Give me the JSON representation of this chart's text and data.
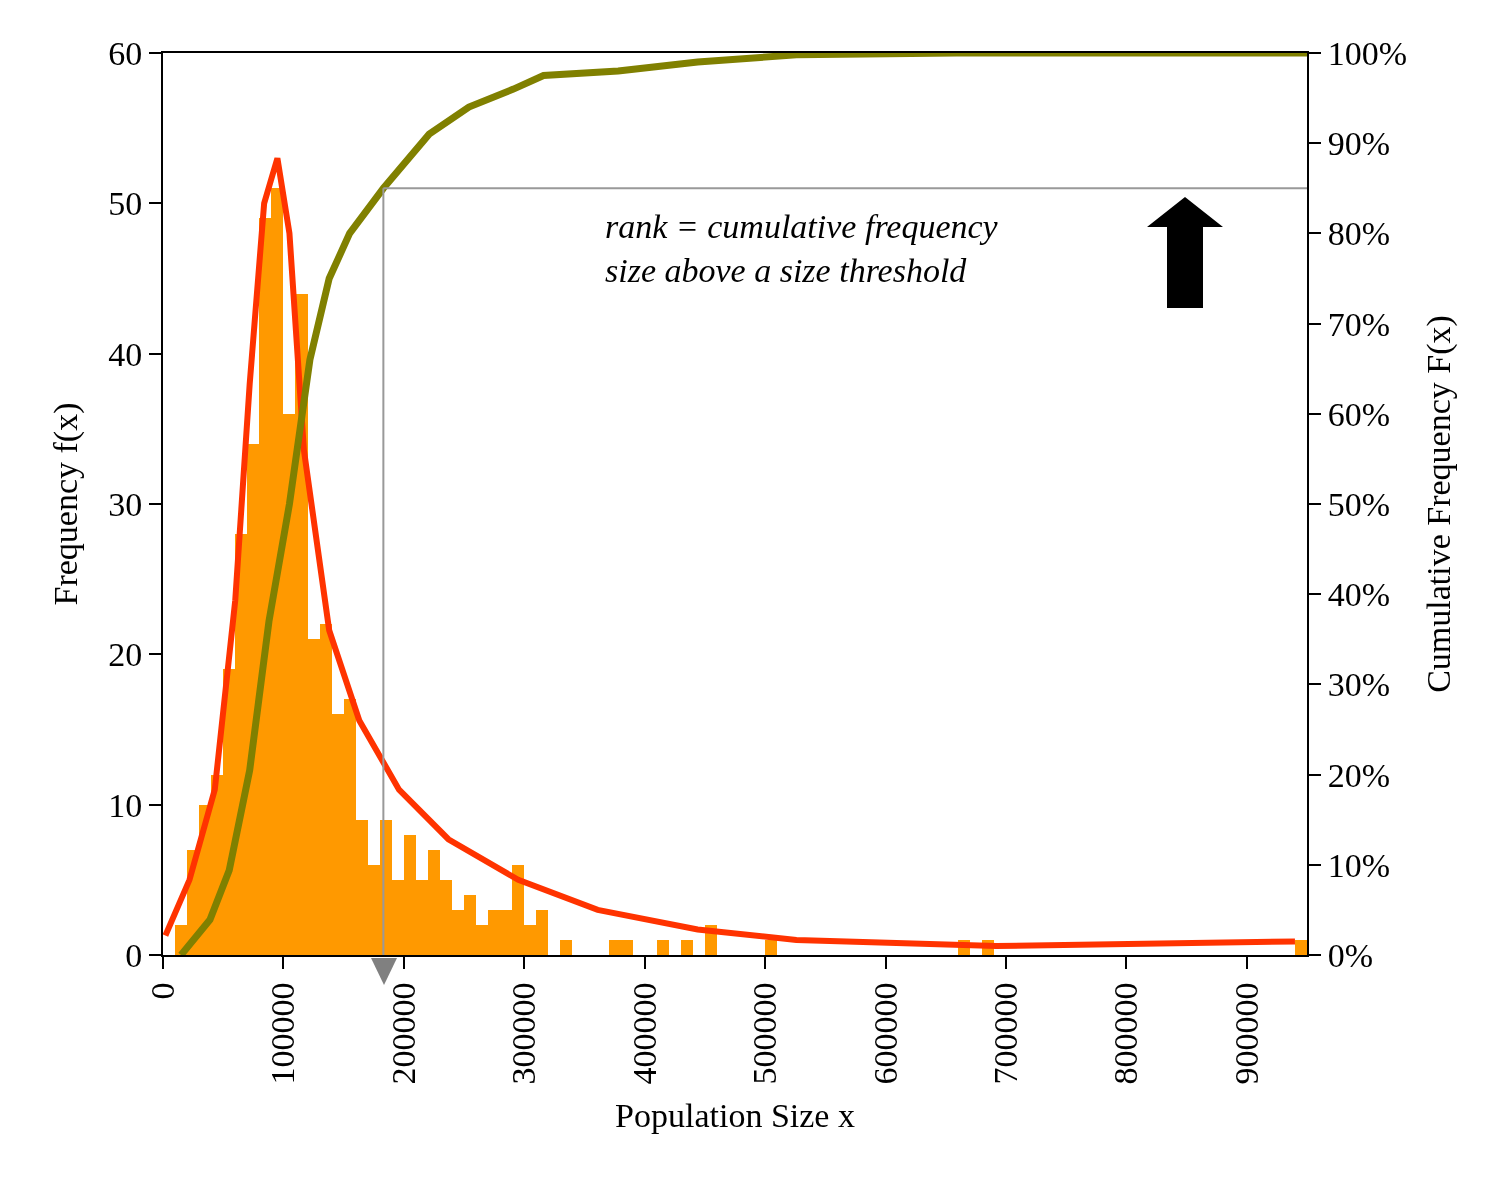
{
  "chart_data": {
    "type": "histogram",
    "xlabel": "Population Size x",
    "ylabel": "Frequency f(x)",
    "y2label": "Cumulative Frequency F(x)",
    "bins": [
      0,
      10000,
      20000,
      30000,
      40000,
      50000,
      60000,
      70000,
      80000,
      90000,
      100000,
      110000,
      120000,
      130000,
      140000,
      150000,
      160000,
      170000,
      180000,
      190000,
      200000,
      210000,
      220000,
      230000,
      240000,
      250000,
      260000,
      270000,
      280000,
      290000,
      300000,
      310000,
      320000,
      330000,
      340000,
      350000,
      360000,
      370000,
      380000,
      390000,
      400000,
      410000,
      420000,
      430000,
      440000,
      450000,
      460000,
      470000,
      480000,
      490000,
      500000,
      510000,
      520000,
      530000,
      540000,
      550000,
      560000,
      570000,
      580000,
      590000,
      600000,
      610000,
      620000,
      630000,
      640000,
      650000,
      660000,
      670000,
      680000,
      690000,
      700000,
      710000,
      720000,
      730000,
      740000,
      750000,
      760000,
      770000,
      780000,
      790000,
      800000,
      810000,
      820000,
      830000,
      840000,
      850000,
      860000,
      870000,
      880000,
      890000,
      900000,
      910000,
      920000,
      930000,
      940000,
      950000
    ],
    "series": [
      {
        "type": "histogram",
        "color": "#ff9900",
        "values": [
          0,
          2,
          7,
          10,
          12,
          19,
          28,
          34,
          49,
          51,
          36,
          44,
          21,
          22,
          16,
          17,
          9,
          6,
          9,
          5,
          8,
          5,
          7,
          5,
          3,
          4,
          2,
          3,
          3,
          6,
          2,
          3,
          0,
          1,
          0,
          0,
          0,
          1,
          1,
          0,
          0,
          1,
          0,
          1,
          0,
          2,
          0,
          0,
          0,
          0,
          1,
          0,
          0,
          0,
          0,
          0,
          0,
          0,
          0,
          0,
          0,
          0,
          0,
          0,
          0,
          0,
          1,
          0,
          1,
          0,
          0,
          0,
          0,
          0,
          0,
          0,
          0,
          0,
          0,
          0,
          0,
          0,
          0,
          0,
          0,
          0,
          0,
          0,
          0,
          0,
          0,
          0,
          0,
          0,
          1
        ]
      },
      {
        "type": "line",
        "color": "#808000",
        "axis": "y2",
        "x": [
          15000,
          39000,
          55000,
          72000,
          88000,
          105000,
          122000,
          138000,
          155000,
          183000,
          221000,
          254000,
          291000,
          316000,
          378000,
          444000,
          526000,
          659000,
          950000
        ],
        "values": [
          0,
          3.9,
          9.4,
          20.5,
          37,
          50,
          66,
          75,
          80,
          85,
          91,
          94,
          96,
          97.5,
          98,
          99,
          99.8,
          100,
          100
        ]
      },
      {
        "type": "line",
        "color": "#ff3300",
        "x": [
          2000,
          22000,
          43000,
          60000,
          72000,
          84000,
          95000,
          105000,
          117000,
          138000,
          163000,
          196000,
          237000,
          295000,
          361000,
          444000,
          526000,
          692000,
          940000
        ],
        "values": [
          1.3,
          5,
          11,
          23.6,
          38,
          50,
          53,
          48,
          33.6,
          21.6,
          15.6,
          11,
          7.7,
          5,
          3,
          1.7,
          1,
          0.6,
          0.9
        ]
      }
    ],
    "xlim": [
      0,
      950000
    ],
    "xticks": [
      0,
      100000,
      200000,
      300000,
      400000,
      500000,
      600000,
      700000,
      800000,
      900000
    ],
    "ylim": [
      0,
      60
    ],
    "yticks": [
      0,
      10,
      20,
      30,
      40,
      50,
      60
    ],
    "y2lim": [
      0,
      100
    ],
    "y2ticks": [
      {
        "value": 0,
        "label": "0%"
      },
      {
        "value": 10,
        "label": "10%"
      },
      {
        "value": 20,
        "label": "20%"
      },
      {
        "value": 30,
        "label": "30%"
      },
      {
        "value": 40,
        "label": "40%"
      },
      {
        "value": 50,
        "label": "50%"
      },
      {
        "value": 60,
        "label": "60%"
      },
      {
        "value": 70,
        "label": "70%"
      },
      {
        "value": 80,
        "label": "80%"
      },
      {
        "value": 90,
        "label": "90%"
      },
      {
        "value": 100,
        "label": "100%"
      }
    ],
    "ref_lines": [
      {
        "axis": "x",
        "value": 183000,
        "color": "#999999"
      },
      {
        "axis": "y2",
        "value": 85,
        "color": "#999999"
      }
    ],
    "annotations": [
      "rank = cumulative frequency\nsize above a size threshold"
    ],
    "grid": false,
    "legend": false
  }
}
